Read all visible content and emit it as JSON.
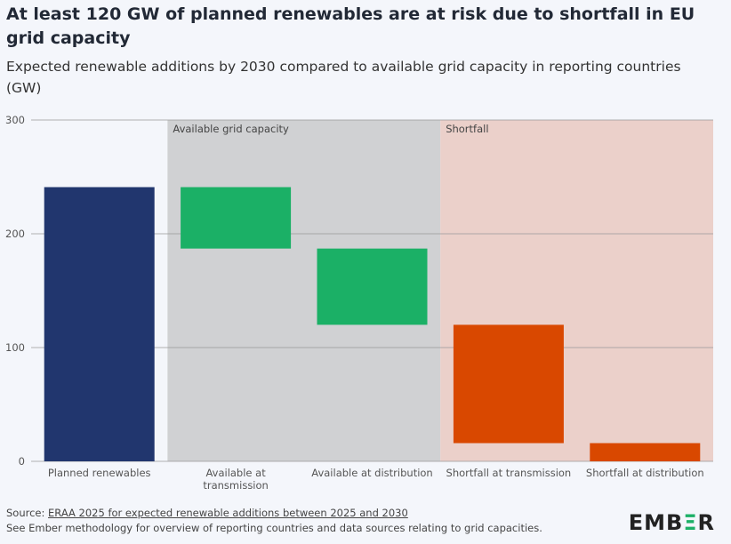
{
  "title": "At least 120 GW of planned renewables are at risk due to shortfall in EU grid capacity",
  "subtitle": "Expected renewable additions by 2030 compared to available grid capacity in reporting countries (GW)",
  "chart_data": {
    "type": "bar",
    "subtype": "waterfall",
    "categories": [
      "Planned renewables",
      "Available at transmission",
      "Available at distribution",
      "Shortfall at transmission",
      "Shortfall at distribution"
    ],
    "series": [
      {
        "ranges": [
          [
            0,
            241
          ],
          [
            187,
            241
          ],
          [
            120,
            187
          ],
          [
            16,
            120
          ],
          [
            0,
            16
          ]
        ]
      }
    ],
    "colors": [
      "#21366e",
      "#1bb066",
      "#1bb066",
      "#d94800",
      "#d94800"
    ],
    "regions": [
      {
        "label": "Available grid capacity",
        "from_category": 1,
        "to_category": 2,
        "color": "#d0d1d3"
      },
      {
        "label": "Shortfall",
        "from_category": 3,
        "to_category": 4,
        "color": "#ebd0ca"
      }
    ],
    "yticks": [
      0,
      100,
      200,
      300
    ],
    "ylim": [
      0,
      300
    ],
    "grid": true
  },
  "footer": {
    "source_prefix": "Source: ",
    "source_link": "ERAA 2025 for expected renewable additions between 2025 and 2030",
    "note": "See Ember methodology for overview of reporting countries and data sources relating to grid capacities."
  },
  "logo": "EMBER"
}
